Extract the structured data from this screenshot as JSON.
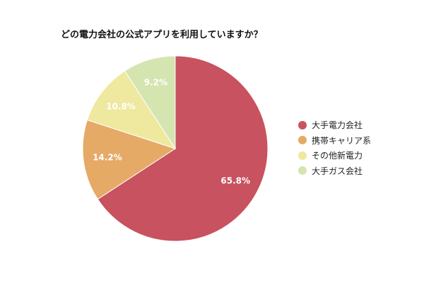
{
  "chart_data": {
    "type": "pie",
    "title": "どの電力会社の公式アプリを利用していますか？",
    "legend_position": "right",
    "slices": [
      {
        "name": "大手電力会社",
        "value": 65.8,
        "label": "65.8%",
        "color": "#c8525f"
      },
      {
        "name": "携帯キャリア系",
        "value": 14.2,
        "label": "14.2%",
        "color": "#e5aa66"
      },
      {
        "name": "その他新電力",
        "value": 10.8,
        "label": "10.8%",
        "color": "#efe89f"
      },
      {
        "name": "大手ガス会社",
        "value": 9.2,
        "label": "9.2%",
        "color": "#d5e5b0"
      }
    ]
  }
}
